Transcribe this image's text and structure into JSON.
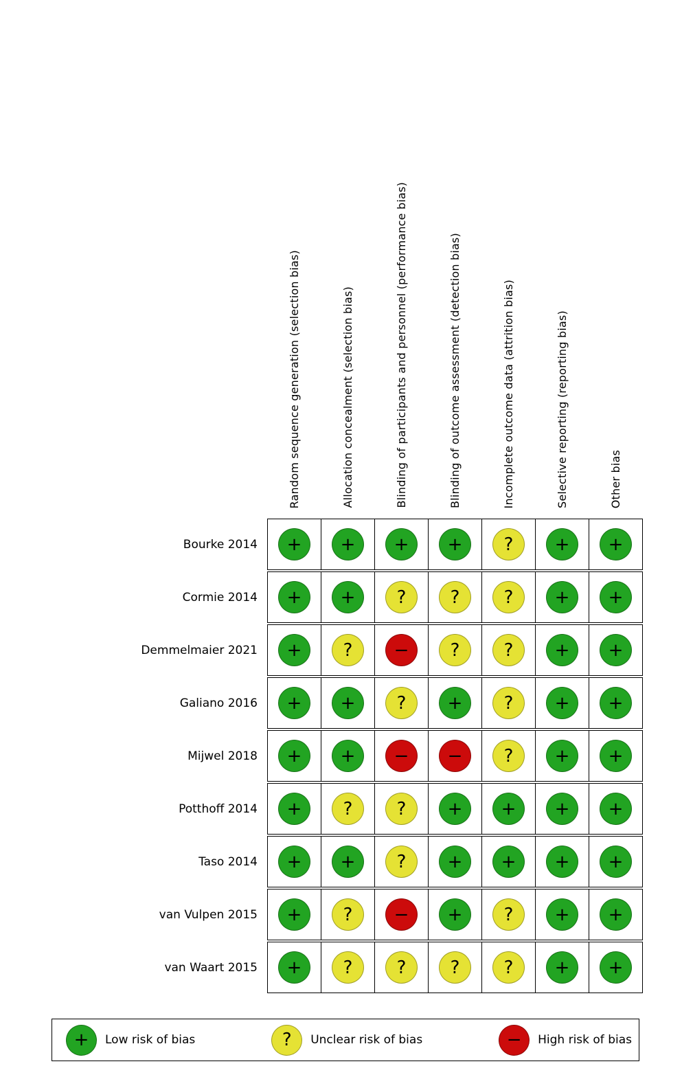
{
  "chart_data": {
    "type": "table",
    "subtype": "risk-of-bias-summary",
    "title": "",
    "columns": [
      "Random sequence generation (selection bias)",
      "Allocation concealment (selection bias)",
      "Blinding of participants and personnel (performance bias)",
      "Blinding of outcome assessment (detection bias)",
      "Incomplete outcome data (attrition bias)",
      "Selective reporting (reporting bias)",
      "Other bias"
    ],
    "rows": [
      {
        "label": "Bourke 2014",
        "values": [
          "low",
          "low",
          "low",
          "low",
          "unclear",
          "low",
          "low"
        ]
      },
      {
        "label": "Cormie 2014",
        "values": [
          "low",
          "low",
          "unclear",
          "unclear",
          "unclear",
          "low",
          "low"
        ]
      },
      {
        "label": "Demmelmaier 2021",
        "values": [
          "low",
          "unclear",
          "high",
          "unclear",
          "unclear",
          "low",
          "low"
        ]
      },
      {
        "label": "Galiano 2016",
        "values": [
          "low",
          "low",
          "unclear",
          "low",
          "unclear",
          "low",
          "low"
        ]
      },
      {
        "label": "Mijwel 2018",
        "values": [
          "low",
          "low",
          "high",
          "high",
          "unclear",
          "low",
          "low"
        ]
      },
      {
        "label": "Potthoff 2014",
        "values": [
          "low",
          "unclear",
          "unclear",
          "low",
          "low",
          "low",
          "low"
        ]
      },
      {
        "label": "Taso 2014",
        "values": [
          "low",
          "low",
          "unclear",
          "low",
          "low",
          "low",
          "low"
        ]
      },
      {
        "label": "van Vulpen 2015",
        "values": [
          "low",
          "unclear",
          "high",
          "low",
          "unclear",
          "low",
          "low"
        ]
      },
      {
        "label": "van Waart 2015",
        "values": [
          "low",
          "unclear",
          "unclear",
          "unclear",
          "unclear",
          "low",
          "low"
        ]
      }
    ],
    "legend": [
      {
        "key": "low",
        "symbol": "+",
        "label": "Low risk of bias",
        "color": "#22a422"
      },
      {
        "key": "unclear",
        "symbol": "?",
        "label": "Unclear risk of bias",
        "color": "#e5e234"
      },
      {
        "key": "high",
        "symbol": "−",
        "label": "High risk of bias",
        "color": "#cc0b0b"
      }
    ],
    "layout": {
      "legend_position": "bottom",
      "grid": "on",
      "column_labels_rotated": true
    }
  }
}
